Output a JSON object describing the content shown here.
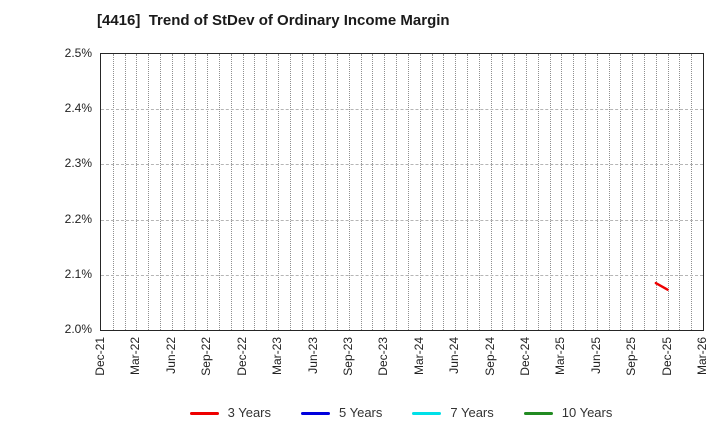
{
  "title": "[4416]  Trend of StDev of Ordinary Income Margin",
  "chart_data": {
    "type": "line",
    "title": "[4416]  Trend of StDev of Ordinary Income Margin",
    "x_axis": {
      "unit": "month",
      "start": "Dec-21",
      "end": "Mar-26",
      "tick_labels": [
        "Dec-21",
        "Mar-22",
        "Jun-22",
        "Sep-22",
        "Dec-22",
        "Mar-23",
        "Jun-23",
        "Sep-23",
        "Dec-23",
        "Mar-24",
        "Jun-24",
        "Sep-24",
        "Dec-24",
        "Mar-25",
        "Jun-25",
        "Sep-25",
        "Dec-25",
        "Mar-26"
      ],
      "minor_gridlines": "monthly-dotted"
    },
    "y_axis": {
      "min": 2.0,
      "max": 2.5,
      "unit": "%",
      "ticks": [
        2.0,
        2.1,
        2.2,
        2.3,
        2.4,
        2.5
      ],
      "tick_labels": [
        "2.0%",
        "2.1%",
        "2.2%",
        "2.3%",
        "2.4%",
        "2.5%"
      ],
      "gridlines": "dashed"
    },
    "legend_position": "bottom-center",
    "series": [
      {
        "name": "3 Years",
        "color": "#ee0000",
        "points": [
          [
            "Nov-25",
            2.085
          ],
          [
            "Dec-25",
            2.073
          ]
        ]
      },
      {
        "name": "5 Years",
        "color": "#0000dd",
        "points": []
      },
      {
        "name": "7 Years",
        "color": "#00e0e8",
        "points": []
      },
      {
        "name": "10 Years",
        "color": "#228b22",
        "points": []
      }
    ]
  }
}
